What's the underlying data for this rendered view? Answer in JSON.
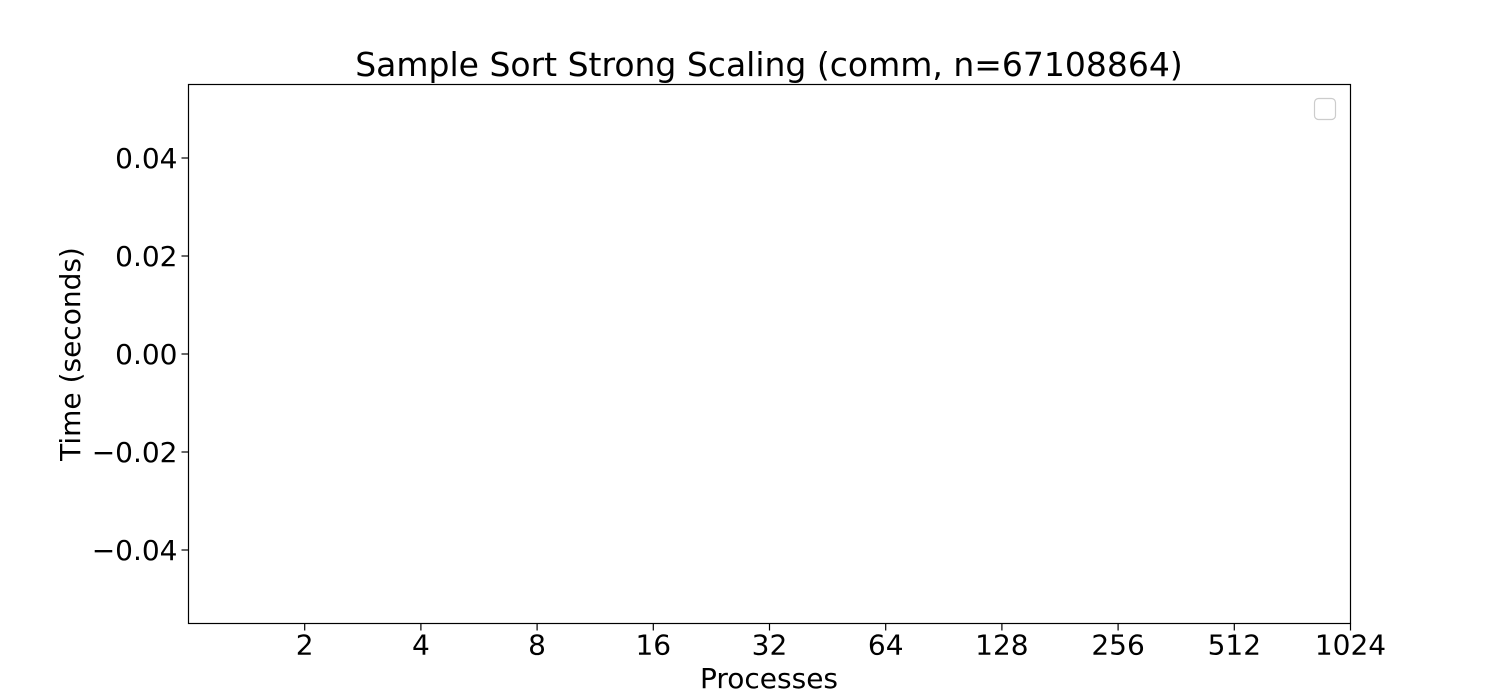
{
  "chart_data": {
    "type": "line",
    "title": "Sample Sort Strong Scaling (comm, n=67108864)",
    "xlabel": "Processes",
    "ylabel": "Time (seconds)",
    "x_scale": "log2",
    "x_ticks": [
      2,
      4,
      8,
      16,
      32,
      64,
      128,
      256,
      512,
      1024
    ],
    "x_tick_labels": [
      "2",
      "4",
      "8",
      "16",
      "32",
      "64",
      "128",
      "256",
      "512",
      "1024"
    ],
    "xlim": [
      1.0,
      1024
    ],
    "y_ticks": [
      0.04,
      0.02,
      0.0,
      -0.02,
      -0.04
    ],
    "y_tick_labels": [
      "0.04",
      "0.02",
      "0.00",
      "−0.02",
      "−0.04"
    ],
    "ylim": [
      -0.055,
      0.055
    ],
    "series": [],
    "legend": {
      "placement": "top-right",
      "entries": []
    },
    "grid": false
  }
}
